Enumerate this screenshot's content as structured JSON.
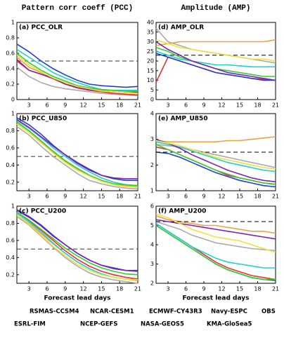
{
  "column_titles": [
    "Pattern corr coeff (PCC)",
    "Amplitude (AMP)"
  ],
  "chart_data": [
    {
      "type": "line",
      "title": "(a) PCC_OLR",
      "x": [
        1,
        3,
        5,
        7,
        9,
        11,
        13,
        15,
        17,
        19,
        21
      ],
      "xlim": [
        1,
        21
      ],
      "xticks": [
        3,
        6,
        9,
        12,
        15,
        18,
        21
      ],
      "ylim": [
        0,
        1
      ],
      "yticks": [
        0,
        0.2,
        0.4,
        0.6,
        0.8,
        1
      ],
      "reference_line": 0.5,
      "series": [
        {
          "name": "RSMAS-CCSM4",
          "color": "#aaaaaa",
          "values": [
            0.42,
            0.3,
            0.22,
            0.17,
            0.14,
            0.12,
            0.1,
            0.08,
            0.07,
            0.06,
            0.05
          ]
        },
        {
          "name": "NCAR-CESM1",
          "color": "#e83030",
          "values": [
            0.5,
            0.38,
            0.33,
            0.27,
            0.2,
            0.15,
            0.12,
            0.1,
            0.08,
            0.07,
            0.06
          ]
        },
        {
          "name": "ECMWF-CY43R3",
          "color": "#1f3fd6",
          "values": [
            0.72,
            0.62,
            0.5,
            0.4,
            0.32,
            0.25,
            0.2,
            0.18,
            0.17,
            0.16,
            0.17
          ]
        },
        {
          "name": "Navy-ESPC",
          "color": "#f0a040",
          "values": [
            0.55,
            0.42,
            0.35,
            0.28,
            0.22,
            0.18,
            0.15,
            0.12,
            0.12,
            0.11,
            0.1
          ]
        },
        {
          "name": "ESRL-FIM",
          "color": "#20d0d0",
          "values": [
            0.65,
            0.55,
            0.45,
            0.35,
            0.28,
            0.22,
            0.17,
            0.13,
            0.12,
            0.12,
            0.12
          ]
        },
        {
          "name": "NCEP-GEFS",
          "color": "#30d030",
          "values": [
            0.6,
            0.48,
            0.38,
            0.3,
            0.24,
            0.18,
            0.15,
            0.13,
            0.12,
            0.11,
            0.11
          ]
        },
        {
          "name": "NASA-GEOS5",
          "color": "#8020b0",
          "values": [
            0.52,
            0.38,
            0.33,
            0.28,
            0.2,
            0.16,
            0.13,
            0.11,
            0.1,
            0.09,
            0.09
          ]
        },
        {
          "name": "KMA-GloSea5",
          "color": "#f0e040",
          "values": [
            0.58,
            0.45,
            0.36,
            0.28,
            0.22,
            0.17,
            0.14,
            0.11,
            0.1,
            0.09,
            0.08
          ]
        }
      ]
    },
    {
      "type": "line",
      "title": "(b) PCC_U850",
      "x": [
        1,
        3,
        5,
        7,
        9,
        11,
        13,
        15,
        17,
        19,
        21
      ],
      "xlim": [
        1,
        21
      ],
      "xticks": [
        3,
        6,
        9,
        12,
        15,
        18,
        21
      ],
      "ylim": [
        0.1,
        1
      ],
      "yticks": [
        0.2,
        0.4,
        0.6,
        0.8,
        1
      ],
      "reference_line": 0.5,
      "series": [
        {
          "name": "RSMAS-CCSM4",
          "color": "#aaaaaa",
          "values": [
            0.85,
            0.75,
            0.62,
            0.5,
            0.4,
            0.3,
            0.22,
            0.18,
            0.15,
            0.13,
            0.12
          ]
        },
        {
          "name": "NCAR-CESM1",
          "color": "#e83030",
          "values": [
            0.9,
            0.8,
            0.68,
            0.56,
            0.45,
            0.36,
            0.28,
            0.22,
            0.17,
            0.15,
            0.14
          ]
        },
        {
          "name": "ECMWF-CY43R3",
          "color": "#1f3fd6",
          "values": [
            0.95,
            0.87,
            0.76,
            0.63,
            0.52,
            0.43,
            0.35,
            0.28,
            0.24,
            0.22,
            0.22
          ]
        },
        {
          "name": "Navy-ESPC",
          "color": "#f0a040",
          "values": [
            0.88,
            0.78,
            0.66,
            0.55,
            0.44,
            0.35,
            0.28,
            0.22,
            0.18,
            0.16,
            0.15
          ]
        },
        {
          "name": "ESRL-FIM",
          "color": "#20d0d0",
          "values": [
            0.92,
            0.83,
            0.72,
            0.6,
            0.5,
            0.4,
            0.32,
            0.25,
            0.2,
            0.17,
            0.16
          ]
        },
        {
          "name": "NCEP-GEFS",
          "color": "#30d030",
          "values": [
            0.9,
            0.8,
            0.68,
            0.56,
            0.45,
            0.36,
            0.28,
            0.22,
            0.18,
            0.17,
            0.16
          ]
        },
        {
          "name": "NASA-GEOS5",
          "color": "#8020b0",
          "values": [
            0.93,
            0.84,
            0.73,
            0.62,
            0.52,
            0.42,
            0.34,
            0.28,
            0.25,
            0.24,
            0.24
          ]
        },
        {
          "name": "KMA-GloSea5",
          "color": "#f0e040",
          "values": [
            0.88,
            0.78,
            0.66,
            0.54,
            0.43,
            0.34,
            0.27,
            0.21,
            0.17,
            0.15,
            0.14
          ]
        }
      ]
    },
    {
      "type": "line",
      "title": "(c) PCC_U200",
      "xlabel": "Forecast lead days",
      "x": [
        1,
        3,
        5,
        7,
        9,
        11,
        13,
        15,
        17,
        19,
        21
      ],
      "xlim": [
        1,
        21
      ],
      "xticks": [
        3,
        6,
        9,
        12,
        15,
        18,
        21
      ],
      "ylim": [
        0.1,
        1
      ],
      "yticks": [
        0.2,
        0.4,
        0.6,
        0.8,
        1
      ],
      "reference_line": 0.5,
      "series": [
        {
          "name": "RSMAS-CCSM4",
          "color": "#aaaaaa",
          "values": [
            0.88,
            0.78,
            0.65,
            0.52,
            0.4,
            0.3,
            0.22,
            0.17,
            0.14,
            0.12,
            0.1
          ]
        },
        {
          "name": "NCAR-CESM1",
          "color": "#e83030",
          "values": [
            0.92,
            0.83,
            0.72,
            0.6,
            0.48,
            0.38,
            0.3,
            0.24,
            0.2,
            0.17,
            0.15
          ]
        },
        {
          "name": "ECMWF-CY43R3",
          "color": "#1f3fd6",
          "values": [
            0.96,
            0.88,
            0.78,
            0.66,
            0.55,
            0.45,
            0.37,
            0.31,
            0.28,
            0.25,
            0.24
          ]
        },
        {
          "name": "Navy-ESPC",
          "color": "#f0a040",
          "values": [
            0.9,
            0.8,
            0.68,
            0.56,
            0.45,
            0.35,
            0.27,
            0.21,
            0.17,
            0.15,
            0.13
          ]
        },
        {
          "name": "ESRL-FIM",
          "color": "#20d0d0",
          "values": [
            0.92,
            0.82,
            0.7,
            0.57,
            0.45,
            0.35,
            0.27,
            0.21,
            0.17,
            0.15,
            0.14
          ]
        },
        {
          "name": "NCEP-GEFS",
          "color": "#30d030",
          "values": [
            0.93,
            0.84,
            0.73,
            0.62,
            0.51,
            0.42,
            0.34,
            0.28,
            0.24,
            0.21,
            0.2
          ]
        },
        {
          "name": "NASA-GEOS5",
          "color": "#8020b0",
          "values": [
            0.95,
            0.87,
            0.77,
            0.65,
            0.55,
            0.45,
            0.37,
            0.31,
            0.27,
            0.25,
            0.25
          ]
        },
        {
          "name": "KMA-GloSea5",
          "color": "#f0e040",
          "values": [
            0.9,
            0.79,
            0.66,
            0.53,
            0.42,
            0.32,
            0.25,
            0.2,
            0.17,
            0.15,
            0.14
          ]
        }
      ]
    },
    {
      "type": "line",
      "title": "(d) AMP_OLR",
      "x": [
        1,
        3,
        5,
        7,
        9,
        11,
        13,
        15,
        17,
        19,
        21
      ],
      "xlim": [
        1,
        21
      ],
      "xticks": [
        3,
        6,
        9,
        12,
        15,
        18,
        21
      ],
      "ylim": [
        0,
        40
      ],
      "yticks": [
        0,
        5,
        10,
        15,
        20,
        25,
        30,
        35,
        40
      ],
      "series": [
        {
          "name": "RSMAS-CCSM4",
          "color": "#aaaaaa",
          "values": [
            37,
            30,
            28,
            26,
            25,
            24,
            23,
            22,
            21,
            20,
            19
          ]
        },
        {
          "name": "NCAR-CESM1",
          "color": "#e83030",
          "values": [
            9,
            22,
            20,
            18,
            16,
            14,
            13,
            12,
            11,
            10.5,
            10
          ]
        },
        {
          "name": "ECMWF-CY43R3",
          "color": "#1f3fd6",
          "values": [
            24,
            22,
            20,
            18,
            16,
            14,
            13,
            12,
            11,
            10,
            10
          ]
        },
        {
          "name": "Navy-ESPC",
          "color": "#f0a040",
          "values": [
            28,
            29,
            30,
            30,
            30,
            30,
            30,
            30,
            30,
            30,
            31
          ]
        },
        {
          "name": "OBS",
          "color": "#000000",
          "dash": true,
          "values": [
            23,
            23,
            23,
            23,
            23,
            23,
            23,
            23,
            23,
            23,
            23
          ]
        },
        {
          "name": "ESRL-FIM",
          "color": "#20d0d0",
          "values": [
            25,
            23,
            21,
            20,
            19,
            18,
            18,
            17.5,
            17,
            17,
            17
          ]
        },
        {
          "name": "NCEP-GEFS",
          "color": "#30d030",
          "values": [
            27,
            25,
            22,
            20,
            18,
            16,
            15,
            14,
            13,
            12,
            12
          ]
        },
        {
          "name": "NASA-GEOS5",
          "color": "#8020b0",
          "values": [
            30,
            26,
            23,
            20,
            18,
            16,
            14,
            13,
            12,
            11,
            10
          ]
        },
        {
          "name": "KMA-GloSea5",
          "color": "#f0e040",
          "values": [
            31,
            29,
            27,
            26,
            25,
            24,
            23,
            22,
            21,
            21,
            20
          ]
        }
      ]
    },
    {
      "type": "line",
      "title": "(e) AMP_U850",
      "x": [
        1,
        3,
        5,
        7,
        9,
        11,
        13,
        15,
        17,
        19,
        21
      ],
      "xlim": [
        1,
        21
      ],
      "xticks": [
        3,
        6,
        9,
        12,
        15,
        18,
        21
      ],
      "ylim": [
        1,
        4
      ],
      "yticks": [
        1,
        2,
        3,
        4
      ],
      "series": [
        {
          "name": "RSMAS-CCSM4",
          "color": "#aaaaaa",
          "values": [
            2.8,
            2.75,
            2.7,
            2.6,
            2.5,
            2.4,
            2.3,
            2.2,
            2.1,
            2.0,
            1.9
          ]
        },
        {
          "name": "NCAR-CESM1",
          "color": "#e83030",
          "values": [
            2.7,
            2.6,
            2.4,
            2.2,
            2.0,
            1.8,
            1.6,
            1.5,
            1.4,
            1.3,
            1.25
          ]
        },
        {
          "name": "ECMWF-CY43R3",
          "color": "#1f3fd6",
          "values": [
            2.5,
            2.45,
            2.3,
            2.1,
            1.9,
            1.7,
            1.55,
            1.4,
            1.3,
            1.2,
            1.15
          ]
        },
        {
          "name": "Navy-ESPC",
          "color": "#f0a040",
          "values": [
            2.95,
            2.9,
            2.9,
            2.9,
            2.9,
            2.9,
            2.95,
            2.95,
            3.0,
            3.05,
            3.1
          ]
        },
        {
          "name": "OBS",
          "color": "#000000",
          "dash": true,
          "values": [
            2.5,
            2.5,
            2.5,
            2.5,
            2.5,
            2.5,
            2.5,
            2.5,
            2.5,
            2.5,
            2.5
          ]
        },
        {
          "name": "ESRL-FIM",
          "color": "#20d0d0",
          "values": [
            2.9,
            2.8,
            2.7,
            2.55,
            2.4,
            2.25,
            2.1,
            2.0,
            1.9,
            1.8,
            1.75
          ]
        },
        {
          "name": "NCEP-GEFS",
          "color": "#30d030",
          "values": [
            2.8,
            2.6,
            2.4,
            2.2,
            2.0,
            1.8,
            1.65,
            1.5,
            1.4,
            1.3,
            1.25
          ]
        },
        {
          "name": "NASA-GEOS5",
          "color": "#8020b0",
          "values": [
            3.0,
            2.85,
            2.65,
            2.4,
            2.2,
            2.0,
            1.8,
            1.65,
            1.5,
            1.4,
            1.35
          ]
        },
        {
          "name": "KMA-GloSea5",
          "color": "#f0e040",
          "values": [
            2.95,
            2.85,
            2.75,
            2.6,
            2.45,
            2.3,
            2.2,
            2.1,
            2.0,
            1.9,
            1.85
          ]
        }
      ]
    },
    {
      "type": "line",
      "title": "(f) AMP_U200",
      "xlabel": "Forecast lead days",
      "x": [
        1,
        3,
        5,
        7,
        9,
        11,
        13,
        15,
        17,
        19,
        21
      ],
      "xlim": [
        1,
        21
      ],
      "xticks": [
        3,
        6,
        9,
        12,
        15,
        18,
        21
      ],
      "ylim": [
        2,
        6
      ],
      "yticks": [
        2,
        3,
        4,
        5,
        6
      ],
      "series": [
        {
          "name": "RSMAS-CCSM4",
          "color": "#aaaaaa",
          "values": [
            5.2,
            5.0,
            4.8,
            4.5,
            4.3,
            4.1,
            4.0,
            3.9,
            3.8,
            3.75,
            3.7
          ]
        },
        {
          "name": "NCAR-CESM1",
          "color": "#e83030",
          "values": [
            5.1,
            4.7,
            4.3,
            3.9,
            3.5,
            3.1,
            2.8,
            2.6,
            2.4,
            2.3,
            2.2
          ]
        },
        {
          "name": "ECMWF-CY43R3",
          "color": "#1f3fd6",
          "values": [
            5.0,
            4.6,
            4.2,
            3.8,
            3.4,
            3.0,
            2.7,
            2.5,
            2.3,
            2.2,
            2.15
          ]
        },
        {
          "name": "Navy-ESPC",
          "color": "#f0a040",
          "values": [
            5.5,
            5.3,
            5.2,
            5.1,
            5.0,
            5.0,
            4.9,
            4.8,
            4.7,
            4.7,
            4.6
          ]
        },
        {
          "name": "OBS",
          "color": "#000000",
          "dash": true,
          "values": [
            5.2,
            5.2,
            5.2,
            5.2,
            5.2,
            5.2,
            5.2,
            5.2,
            5.2,
            5.2,
            5.2
          ]
        },
        {
          "name": "ESRL-FIM",
          "color": "#20d0d0",
          "values": [
            5.1,
            4.7,
            4.3,
            3.9,
            3.6,
            3.3,
            3.1,
            3.0,
            2.9,
            2.8,
            2.8
          ]
        },
        {
          "name": "NCEP-GEFS",
          "color": "#30d030",
          "values": [
            5.0,
            4.6,
            4.2,
            3.8,
            3.4,
            3.0,
            2.7,
            2.5,
            2.3,
            2.2,
            2.2
          ]
        },
        {
          "name": "NASA-GEOS5",
          "color": "#8020b0",
          "values": [
            5.3,
            5.2,
            5.1,
            5.0,
            4.9,
            4.8,
            4.7,
            4.6,
            4.5,
            4.4,
            4.3
          ]
        },
        {
          "name": "KMA-GloSea5",
          "color": "#f0e040",
          "values": [
            5.6,
            5.4,
            5.1,
            4.8,
            4.6,
            4.4,
            4.3,
            4.2,
            4.0,
            3.8,
            3.6
          ]
        }
      ]
    }
  ]
}
